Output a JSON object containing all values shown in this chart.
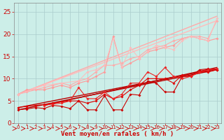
{
  "bg_color": "#cceee8",
  "grid_color": "#aacccc",
  "xlabel": "Vent moyen/en rafales ( km/h )",
  "xlim": [
    -0.5,
    23.5
  ],
  "ylim": [
    0,
    27
  ],
  "yticks": [
    0,
    5,
    10,
    15,
    20,
    25
  ],
  "xticks": [
    0,
    1,
    2,
    3,
    4,
    5,
    6,
    7,
    8,
    9,
    10,
    11,
    12,
    13,
    14,
    15,
    16,
    17,
    18,
    19,
    20,
    21,
    22,
    23
  ],
  "lines": [
    {
      "x": [
        0,
        23
      ],
      "y": [
        3.0,
        12.0
      ],
      "color": "#bb0000",
      "lw": 1.0,
      "marker": null,
      "ms": 0,
      "alpha": 1.0
    },
    {
      "x": [
        0,
        23
      ],
      "y": [
        3.5,
        12.2
      ],
      "color": "#bb0000",
      "lw": 1.0,
      "marker": null,
      "ms": 0,
      "alpha": 1.0
    },
    {
      "x": [
        3,
        23
      ],
      "y": [
        4.0,
        12.5
      ],
      "color": "#bb0000",
      "lw": 1.0,
      "marker": null,
      "ms": 0,
      "alpha": 1.0
    },
    {
      "x": [
        0,
        23
      ],
      "y": [
        6.5,
        24.0
      ],
      "color": "#ffaaaa",
      "lw": 1.0,
      "marker": null,
      "ms": 0,
      "alpha": 1.0
    },
    {
      "x": [
        0,
        23
      ],
      "y": [
        6.5,
        23.0
      ],
      "color": "#ffbbbb",
      "lw": 1.0,
      "marker": null,
      "ms": 0,
      "alpha": 1.0
    },
    {
      "x": [
        0,
        1,
        2,
        3,
        4,
        5,
        6,
        7,
        8,
        9,
        10,
        11,
        12,
        13,
        14,
        15,
        16,
        17,
        18,
        19,
        20,
        21,
        22,
        23
      ],
      "y": [
        3.0,
        3.2,
        3.5,
        3.3,
        4.0,
        3.8,
        3.3,
        5.0,
        3.0,
        3.0,
        6.2,
        3.0,
        3.0,
        6.5,
        6.3,
        9.5,
        9.0,
        7.0,
        7.0,
        10.5,
        10.5,
        12.0,
        12.2,
        12.0
      ],
      "color": "#cc0000",
      "lw": 0.8,
      "marker": "D",
      "ms": 1.8,
      "alpha": 1.0
    },
    {
      "x": [
        0,
        1,
        2,
        3,
        4,
        5,
        6,
        7,
        8,
        9,
        10,
        11,
        12,
        13,
        14,
        15,
        16,
        17,
        18,
        19,
        20,
        21,
        22,
        23
      ],
      "y": [
        3.5,
        3.8,
        4.0,
        4.2,
        4.5,
        4.8,
        5.0,
        5.0,
        4.5,
        5.0,
        6.5,
        5.5,
        6.0,
        7.5,
        8.5,
        10.0,
        10.0,
        10.0,
        9.0,
        10.8,
        10.5,
        11.5,
        11.5,
        12.0
      ],
      "color": "#dd0000",
      "lw": 0.8,
      "marker": "D",
      "ms": 1.8,
      "alpha": 1.0
    },
    {
      "x": [
        3,
        4,
        5,
        6,
        7,
        8,
        9,
        10,
        11,
        12,
        13,
        14,
        15,
        16,
        17,
        18,
        19,
        20,
        21,
        22,
        23
      ],
      "y": [
        4.0,
        4.3,
        4.5,
        5.0,
        8.0,
        5.5,
        5.5,
        7.0,
        5.5,
        6.5,
        9.0,
        9.0,
        11.5,
        10.5,
        12.5,
        10.5,
        10.0,
        10.5,
        11.5,
        12.0,
        12.2
      ],
      "color": "#ee2222",
      "lw": 0.8,
      "marker": "D",
      "ms": 1.8,
      "alpha": 1.0
    },
    {
      "x": [
        0,
        1,
        2,
        3,
        4,
        5,
        6,
        7,
        8,
        9,
        10,
        11,
        12,
        13,
        14,
        15,
        16,
        17,
        18,
        19,
        20,
        21,
        22,
        23
      ],
      "y": [
        6.5,
        7.5,
        7.5,
        7.5,
        8.0,
        8.5,
        8.0,
        9.0,
        9.5,
        10.5,
        11.5,
        19.5,
        12.5,
        13.5,
        14.5,
        16.0,
        16.5,
        17.0,
        17.5,
        19.0,
        19.5,
        19.0,
        18.5,
        19.0
      ],
      "color": "#ff9999",
      "lw": 0.8,
      "marker": "D",
      "ms": 1.8,
      "alpha": 1.0
    },
    {
      "x": [
        0,
        1,
        2,
        3,
        4,
        5,
        6,
        7,
        8,
        9,
        10,
        11,
        12,
        13,
        14,
        15,
        16,
        17,
        18,
        19,
        20,
        21,
        22,
        23
      ],
      "y": [
        6.5,
        7.0,
        7.5,
        8.0,
        8.5,
        9.0,
        8.5,
        9.5,
        10.0,
        11.5,
        13.0,
        13.0,
        13.5,
        14.5,
        15.0,
        16.5,
        17.0,
        17.5,
        18.5,
        19.0,
        19.5,
        19.5,
        19.0,
        23.0
      ],
      "color": "#ffaaaa",
      "lw": 0.8,
      "marker": "D",
      "ms": 1.8,
      "alpha": 1.0
    },
    {
      "x": [
        0,
        3,
        5,
        7,
        8,
        9,
        10,
        11,
        12,
        13,
        14,
        15,
        16,
        17,
        18,
        19,
        20,
        21,
        22,
        23
      ],
      "y": [
        6.5,
        8.5,
        9.0,
        9.5,
        11.5,
        12.0,
        13.0,
        19.0,
        12.5,
        17.0,
        14.5,
        16.0,
        17.5,
        17.0,
        16.5,
        18.5,
        19.5,
        19.0,
        18.5,
        23.5
      ],
      "color": "#ffbbbb",
      "lw": 0.8,
      "marker": "D",
      "ms": 1.8,
      "alpha": 0.9
    }
  ],
  "arrow_color": "#cc0000",
  "xlabel_color": "#cc0000",
  "tick_color": "#cc0000",
  "xlabel_fontsize": 6.5,
  "ytick_fontsize": 6.5,
  "xtick_fontsize": 5.0,
  "spine_color": "#888888"
}
